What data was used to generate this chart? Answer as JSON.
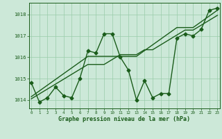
{
  "x_values": [
    0,
    1,
    2,
    3,
    4,
    5,
    6,
    7,
    8,
    9,
    10,
    11,
    12,
    13,
    14,
    15,
    16,
    17,
    18,
    19,
    20,
    21,
    22,
    23
  ],
  "y_main": [
    1014.8,
    1013.9,
    1014.1,
    1014.6,
    1014.2,
    1014.1,
    1015.0,
    1016.3,
    1016.2,
    1017.1,
    1017.1,
    1016.0,
    1015.4,
    1014.0,
    1014.9,
    1014.1,
    1014.3,
    1014.3,
    1016.9,
    1017.1,
    1017.0,
    1017.3,
    1018.2,
    1018.3
  ],
  "y_line1": [
    1014.15,
    1014.42,
    1014.69,
    1014.96,
    1015.23,
    1015.5,
    1015.77,
    1016.04,
    1016.04,
    1016.04,
    1016.04,
    1016.04,
    1016.04,
    1016.04,
    1016.31,
    1016.58,
    1016.85,
    1017.12,
    1017.39,
    1017.39,
    1017.39,
    1017.66,
    1017.93,
    1018.2
  ],
  "y_line2": [
    1014.05,
    1014.28,
    1014.51,
    1014.74,
    1014.97,
    1015.2,
    1015.43,
    1015.66,
    1015.66,
    1015.66,
    1015.89,
    1016.12,
    1016.12,
    1016.12,
    1016.35,
    1016.35,
    1016.58,
    1016.81,
    1017.04,
    1017.27,
    1017.27,
    1017.5,
    1017.73,
    1017.96
  ],
  "line_color": "#1a5c1a",
  "bg_color": "#cce8d8",
  "grid_color": "#99ccaa",
  "ylim": [
    1013.6,
    1018.55
  ],
  "yticks": [
    1014,
    1015,
    1016,
    1017,
    1018
  ],
  "xticks": [
    0,
    1,
    2,
    3,
    4,
    5,
    6,
    7,
    8,
    9,
    10,
    11,
    12,
    13,
    14,
    15,
    16,
    17,
    18,
    19,
    20,
    21,
    22,
    23
  ],
  "xlabel": "Graphe pression niveau de la mer (hPa)",
  "marker": "D",
  "markersize": 2.5,
  "linewidth": 1.0
}
